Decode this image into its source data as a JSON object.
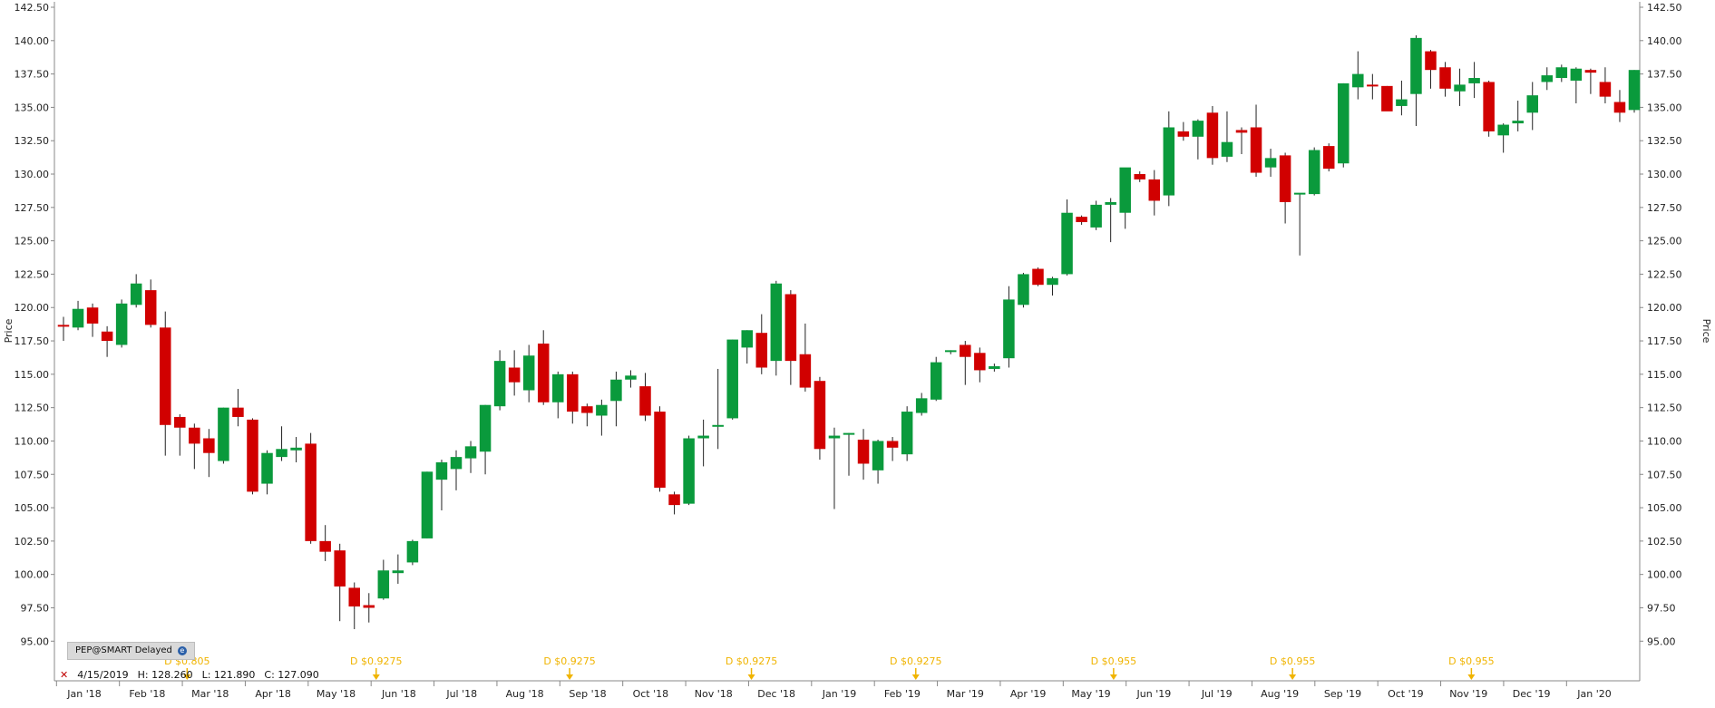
{
  "symbol_badge": "PEP@SMART Delayed",
  "info": {
    "date": "4/15/2019",
    "high": "H: 128.260",
    "low": "L: 121.890",
    "close": "C: 127.090"
  },
  "colors": {
    "up": "#0a9a3c",
    "down": "#d10000",
    "wick": "#222222",
    "dividend": "#f0b400",
    "axis": "#888888"
  },
  "chart_data": {
    "type": "candlestick",
    "ylabel_left": "Price",
    "ylabel_right": "Price",
    "ylim": [
      94,
      142.5
    ],
    "yticks": [
      "95.00",
      "97.50",
      "100.00",
      "102.50",
      "105.00",
      "107.50",
      "110.00",
      "112.50",
      "115.00",
      "117.50",
      "120.00",
      "122.50",
      "125.00",
      "127.50",
      "130.00",
      "132.50",
      "135.00",
      "137.50",
      "140.00",
      "142.50"
    ],
    "ytick_values": [
      95,
      97.5,
      100,
      102.5,
      105,
      107.5,
      110,
      112.5,
      115,
      117.5,
      120,
      122.5,
      125,
      127.5,
      130,
      132.5,
      135,
      137.5,
      140,
      142.5
    ],
    "months": [
      "Jan '18",
      "Feb '18",
      "Mar '18",
      "Apr '18",
      "May '18",
      "Jun '18",
      "Jul '18",
      "Aug '18",
      "Sep '18",
      "Oct '18",
      "Nov '18",
      "Dec '18",
      "Jan '19",
      "Feb '19",
      "Mar '19",
      "Apr '19",
      "May '19",
      "Jun '19",
      "Jul '19",
      "Aug '19",
      "Sep '19",
      "Oct '19",
      "Nov '19",
      "Dec '19",
      "Jan '20"
    ],
    "candles": [
      {
        "o": 118.7,
        "h": 119.3,
        "l": 117.5,
        "c": 118.6
      },
      {
        "o": 118.5,
        "h": 120.5,
        "l": 118.3,
        "c": 119.9
      },
      {
        "o": 120.0,
        "h": 120.3,
        "l": 117.8,
        "c": 118.8
      },
      {
        "o": 118.2,
        "h": 118.6,
        "l": 116.3,
        "c": 117.5
      },
      {
        "o": 117.2,
        "h": 120.6,
        "l": 117.0,
        "c": 120.3
      },
      {
        "o": 120.2,
        "h": 122.5,
        "l": 120.0,
        "c": 121.8
      },
      {
        "o": 121.3,
        "h": 122.1,
        "l": 118.5,
        "c": 118.7
      },
      {
        "o": 118.5,
        "h": 119.7,
        "l": 108.9,
        "c": 111.2
      },
      {
        "o": 111.8,
        "h": 112.0,
        "l": 108.9,
        "c": 111.0
      },
      {
        "o": 111.0,
        "h": 111.3,
        "l": 107.9,
        "c": 109.8
      },
      {
        "o": 110.2,
        "h": 110.9,
        "l": 107.3,
        "c": 109.1
      },
      {
        "o": 108.5,
        "h": 112.5,
        "l": 108.3,
        "c": 112.5
      },
      {
        "o": 112.5,
        "h": 113.9,
        "l": 111.1,
        "c": 111.8
      },
      {
        "o": 111.6,
        "h": 111.7,
        "l": 106.0,
        "c": 106.2
      },
      {
        "o": 106.8,
        "h": 109.3,
        "l": 106.0,
        "c": 109.1
      },
      {
        "o": 108.8,
        "h": 111.1,
        "l": 108.5,
        "c": 109.4
      },
      {
        "o": 109.3,
        "h": 110.3,
        "l": 108.4,
        "c": 109.5
      },
      {
        "o": 109.8,
        "h": 110.6,
        "l": 102.3,
        "c": 102.5
      },
      {
        "o": 102.5,
        "h": 103.7,
        "l": 101.0,
        "c": 101.7
      },
      {
        "o": 101.8,
        "h": 102.3,
        "l": 96.5,
        "c": 99.1
      },
      {
        "o": 99.0,
        "h": 99.4,
        "l": 95.9,
        "c": 97.6
      },
      {
        "o": 97.7,
        "h": 98.6,
        "l": 96.4,
        "c": 97.5
      },
      {
        "o": 98.2,
        "h": 101.1,
        "l": 98.1,
        "c": 100.3
      },
      {
        "o": 100.1,
        "h": 101.5,
        "l": 99.3,
        "c": 100.3
      },
      {
        "o": 100.9,
        "h": 102.6,
        "l": 100.7,
        "c": 102.5
      },
      {
        "o": 102.7,
        "h": 107.7,
        "l": 102.7,
        "c": 107.7
      },
      {
        "o": 107.1,
        "h": 108.6,
        "l": 104.8,
        "c": 108.4
      },
      {
        "o": 107.9,
        "h": 109.3,
        "l": 106.3,
        "c": 108.8
      },
      {
        "o": 108.7,
        "h": 110.0,
        "l": 107.6,
        "c": 109.6
      },
      {
        "o": 109.2,
        "h": 112.7,
        "l": 107.5,
        "c": 112.7
      },
      {
        "o": 112.6,
        "h": 116.8,
        "l": 112.3,
        "c": 116.0
      },
      {
        "o": 115.5,
        "h": 116.8,
        "l": 113.4,
        "c": 114.4
      },
      {
        "o": 113.8,
        "h": 117.2,
        "l": 112.9,
        "c": 116.4
      },
      {
        "o": 117.3,
        "h": 118.3,
        "l": 112.7,
        "c": 112.9
      },
      {
        "o": 112.9,
        "h": 115.2,
        "l": 111.7,
        "c": 115.0
      },
      {
        "o": 115.0,
        "h": 115.2,
        "l": 111.3,
        "c": 112.2
      },
      {
        "o": 112.6,
        "h": 112.8,
        "l": 111.1,
        "c": 112.1
      },
      {
        "o": 111.9,
        "h": 113.1,
        "l": 110.4,
        "c": 112.7
      },
      {
        "o": 113.0,
        "h": 115.2,
        "l": 111.1,
        "c": 114.6
      },
      {
        "o": 114.6,
        "h": 115.3,
        "l": 114.0,
        "c": 114.9
      },
      {
        "o": 114.1,
        "h": 115.1,
        "l": 111.5,
        "c": 111.9
      },
      {
        "o": 112.2,
        "h": 112.6,
        "l": 106.2,
        "c": 106.5
      },
      {
        "o": 106.0,
        "h": 106.2,
        "l": 104.5,
        "c": 105.2
      },
      {
        "o": 105.3,
        "h": 110.4,
        "l": 105.2,
        "c": 110.2
      },
      {
        "o": 110.2,
        "h": 111.6,
        "l": 108.1,
        "c": 110.4
      },
      {
        "o": 111.2,
        "h": 115.4,
        "l": 109.4,
        "c": 111.2
      },
      {
        "o": 111.7,
        "h": 117.6,
        "l": 111.6,
        "c": 117.6
      },
      {
        "o": 117.0,
        "h": 118.3,
        "l": 115.8,
        "c": 118.3
      },
      {
        "o": 118.1,
        "h": 119.5,
        "l": 115.0,
        "c": 115.5
      },
      {
        "o": 116.0,
        "h": 122.0,
        "l": 114.9,
        "c": 121.8
      },
      {
        "o": 121.0,
        "h": 121.3,
        "l": 114.2,
        "c": 116.0
      },
      {
        "o": 116.5,
        "h": 118.8,
        "l": 113.7,
        "c": 114.0
      },
      {
        "o": 114.5,
        "h": 114.8,
        "l": 108.6,
        "c": 109.4
      },
      {
        "o": 110.2,
        "h": 111.0,
        "l": 104.9,
        "c": 110.4
      },
      {
        "o": 110.6,
        "h": 110.6,
        "l": 107.4,
        "c": 110.6
      },
      {
        "o": 110.1,
        "h": 110.9,
        "l": 107.1,
        "c": 108.3
      },
      {
        "o": 107.8,
        "h": 110.1,
        "l": 106.8,
        "c": 110.0
      },
      {
        "o": 110.0,
        "h": 110.3,
        "l": 108.5,
        "c": 109.5
      },
      {
        "o": 109.0,
        "h": 112.6,
        "l": 108.5,
        "c": 112.2
      },
      {
        "o": 112.1,
        "h": 113.6,
        "l": 111.9,
        "c": 113.2
      },
      {
        "o": 113.1,
        "h": 116.3,
        "l": 113.0,
        "c": 115.9
      },
      {
        "o": 116.7,
        "h": 116.8,
        "l": 116.5,
        "c": 116.8
      },
      {
        "o": 117.2,
        "h": 117.5,
        "l": 114.2,
        "c": 116.3
      },
      {
        "o": 116.6,
        "h": 117.0,
        "l": 114.4,
        "c": 115.3
      },
      {
        "o": 115.4,
        "h": 115.8,
        "l": 115.2,
        "c": 115.6
      },
      {
        "o": 116.2,
        "h": 121.6,
        "l": 115.5,
        "c": 120.6
      },
      {
        "o": 120.2,
        "h": 122.6,
        "l": 120.0,
        "c": 122.5
      },
      {
        "o": 122.9,
        "h": 123.0,
        "l": 121.6,
        "c": 121.7
      },
      {
        "o": 121.7,
        "h": 122.3,
        "l": 120.9,
        "c": 122.2
      },
      {
        "o": 122.5,
        "h": 128.1,
        "l": 122.4,
        "c": 127.1
      },
      {
        "o": 126.8,
        "h": 126.9,
        "l": 126.2,
        "c": 126.4
      },
      {
        "o": 126.0,
        "h": 128.0,
        "l": 125.8,
        "c": 127.7
      },
      {
        "o": 127.7,
        "h": 128.2,
        "l": 124.9,
        "c": 127.9
      },
      {
        "o": 127.1,
        "h": 130.4,
        "l": 125.9,
        "c": 130.5
      },
      {
        "o": 130.0,
        "h": 130.2,
        "l": 129.4,
        "c": 129.6
      },
      {
        "o": 129.6,
        "h": 130.3,
        "l": 126.9,
        "c": 128.0
      },
      {
        "o": 128.4,
        "h": 134.7,
        "l": 127.6,
        "c": 133.5
      },
      {
        "o": 133.2,
        "h": 133.9,
        "l": 132.5,
        "c": 132.8
      },
      {
        "o": 132.8,
        "h": 134.1,
        "l": 131.1,
        "c": 134.0
      },
      {
        "o": 134.6,
        "h": 135.1,
        "l": 130.7,
        "c": 131.2
      },
      {
        "o": 131.3,
        "h": 134.7,
        "l": 130.9,
        "c": 132.4
      },
      {
        "o": 133.3,
        "h": 133.5,
        "l": 131.5,
        "c": 133.1
      },
      {
        "o": 133.5,
        "h": 135.2,
        "l": 129.8,
        "c": 130.1
      },
      {
        "o": 130.5,
        "h": 131.9,
        "l": 129.8,
        "c": 131.2
      },
      {
        "o": 131.4,
        "h": 131.6,
        "l": 126.3,
        "c": 127.9
      },
      {
        "o": 128.5,
        "h": 128.5,
        "l": 123.9,
        "c": 128.6
      },
      {
        "o": 128.5,
        "h": 132.0,
        "l": 128.4,
        "c": 131.8
      },
      {
        "o": 132.1,
        "h": 132.3,
        "l": 130.2,
        "c": 130.4
      },
      {
        "o": 130.8,
        "h": 136.8,
        "l": 130.5,
        "c": 136.8
      },
      {
        "o": 136.5,
        "h": 139.2,
        "l": 135.6,
        "c": 137.5
      },
      {
        "o": 136.7,
        "h": 137.5,
        "l": 135.6,
        "c": 136.6
      },
      {
        "o": 136.6,
        "h": 136.6,
        "l": 134.9,
        "c": 134.7
      },
      {
        "o": 135.1,
        "h": 137.0,
        "l": 134.4,
        "c": 135.6
      },
      {
        "o": 136.0,
        "h": 140.4,
        "l": 133.6,
        "c": 140.2
      },
      {
        "o": 139.2,
        "h": 139.3,
        "l": 136.4,
        "c": 137.8
      },
      {
        "o": 138.0,
        "h": 138.4,
        "l": 135.8,
        "c": 136.4
      },
      {
        "o": 136.2,
        "h": 137.9,
        "l": 135.1,
        "c": 136.7
      },
      {
        "o": 136.8,
        "h": 138.4,
        "l": 135.7,
        "c": 137.2
      },
      {
        "o": 136.9,
        "h": 137.0,
        "l": 132.8,
        "c": 133.2
      },
      {
        "o": 132.9,
        "h": 133.8,
        "l": 131.6,
        "c": 133.7
      },
      {
        "o": 133.8,
        "h": 135.5,
        "l": 133.2,
        "c": 134.0
      },
      {
        "o": 134.6,
        "h": 136.9,
        "l": 133.3,
        "c": 135.9
      },
      {
        "o": 136.9,
        "h": 138.0,
        "l": 136.3,
        "c": 137.4
      },
      {
        "o": 137.2,
        "h": 138.2,
        "l": 136.9,
        "c": 138.0
      },
      {
        "o": 137.0,
        "h": 138.0,
        "l": 135.3,
        "c": 137.9
      },
      {
        "o": 137.8,
        "h": 137.9,
        "l": 136.0,
        "c": 137.6
      },
      {
        "o": 136.9,
        "h": 138.0,
        "l": 135.3,
        "c": 135.8
      },
      {
        "o": 135.4,
        "h": 136.3,
        "l": 133.9,
        "c": 134.6
      },
      {
        "o": 134.8,
        "h": 137.8,
        "l": 134.6,
        "c": 137.8
      }
    ],
    "dividends": [
      {
        "label": "D $0.805",
        "at": 8.5
      },
      {
        "label": "D $0.9275",
        "at": 21.5
      },
      {
        "label": "D $0.9275",
        "at": 34.8
      },
      {
        "label": "D $0.9275",
        "at": 47.3
      },
      {
        "label": "D $0.9275",
        "at": 58.6
      },
      {
        "label": "D $0.955",
        "at": 72.2
      },
      {
        "label": "D $0.955",
        "at": 84.5
      },
      {
        "label": "D $0.955",
        "at": 96.8
      }
    ]
  }
}
